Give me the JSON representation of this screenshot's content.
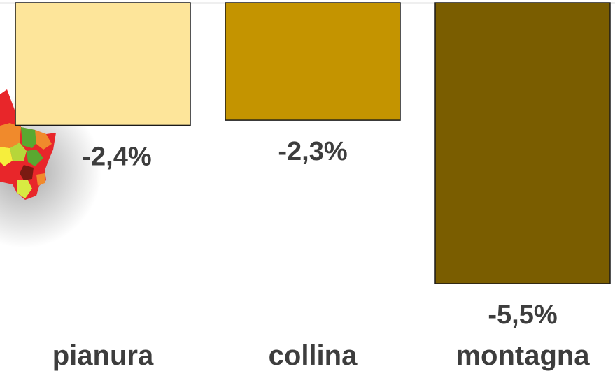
{
  "chart_data": {
    "type": "bar",
    "categories": [
      "pianura",
      "collina",
      "montagna"
    ],
    "values": [
      -2.4,
      -2.3,
      -5.5
    ],
    "value_labels": [
      "-2,4%",
      "-2,3%",
      "-5,5%"
    ],
    "colors": [
      "#fde59a",
      "#c49400",
      "#7a5d00"
    ],
    "ylim": [
      -5.5,
      0
    ],
    "grid": false,
    "legend": "none"
  },
  "icons": {
    "region_map": "region-map-icon"
  }
}
